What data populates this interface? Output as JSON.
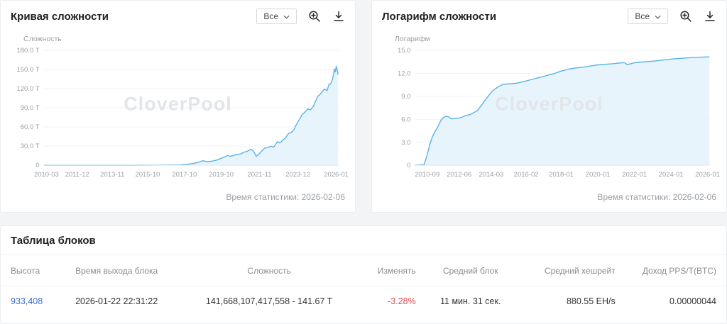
{
  "watermark": "CloverPool",
  "colors": {
    "line": "#56b4e8",
    "area": "#e7f4fc",
    "link": "#3a6fd8",
    "negative": "#e14c4c"
  },
  "panels": [
    {
      "title": "Кривая сложности",
      "range_label": "Все",
      "y_axis_title": "Сложность",
      "stats_time": "Время статистики: 2026-02-06"
    },
    {
      "title": "Логарифм сложности",
      "range_label": "Все",
      "y_axis_title": "Логарифм",
      "stats_time": "Время статистики: 2026-02-06"
    }
  ],
  "blocks_table": {
    "title": "Таблица блоков",
    "headers": [
      "Высота",
      "Время выхода блока",
      "Сложность",
      "Изменять",
      "Средний блок",
      "Средний хешрейт",
      "Доход PPS/T(BTC)"
    ],
    "rows": [
      {
        "height": "933,408",
        "time": "2026-01-22 22:31:22",
        "difficulty": "141,668,107,417,558 - 141.67 T",
        "change": "-3.28%",
        "avg_block": "11 мин. 31 сек.",
        "avg_hashrate": "880.55 EH/s",
        "income": "0.00000044"
      }
    ]
  },
  "chart_data": [
    {
      "type": "area",
      "title": "Кривая сложности",
      "ylabel": "Сложность",
      "legend": "none",
      "grid": "horizontal",
      "xrange": [
        2010.1,
        2026.15
      ],
      "ylim": [
        0,
        180
      ],
      "yticks": [
        {
          "v": 180,
          "label": "180.0 T"
        },
        {
          "v": 150,
          "label": "150.0 T"
        },
        {
          "v": 120,
          "label": "120.0 T"
        },
        {
          "v": 90,
          "label": "90.0 T"
        },
        {
          "v": 60,
          "label": "60.0 T"
        },
        {
          "v": 30,
          "label": "30.0 T"
        },
        {
          "v": 0,
          "label": "0"
        }
      ],
      "xticks": [
        {
          "v": 2010.25,
          "label": "2010-03"
        },
        {
          "v": 2011.92,
          "label": "2011-12"
        },
        {
          "v": 2013.83,
          "label": "2013-11"
        },
        {
          "v": 2015.75,
          "label": "2015-10"
        },
        {
          "v": 2017.75,
          "label": "2017-10"
        },
        {
          "v": 2019.75,
          "label": "2019-10"
        },
        {
          "v": 2021.83,
          "label": "2021-11"
        },
        {
          "v": 2023.92,
          "label": "2023-12"
        },
        {
          "v": 2026.0,
          "label": "2026-01"
        }
      ],
      "points": [
        [
          2010.1,
          0
        ],
        [
          2012.0,
          0
        ],
        [
          2013.0,
          0
        ],
        [
          2014.0,
          0.002
        ],
        [
          2015.0,
          0.05
        ],
        [
          2016.0,
          0.14
        ],
        [
          2016.5,
          0.21
        ],
        [
          2017.0,
          0.39
        ],
        [
          2017.5,
          0.71
        ],
        [
          2017.9,
          1.4
        ],
        [
          2018.2,
          2.6
        ],
        [
          2018.5,
          4.3
        ],
        [
          2018.75,
          7.0
        ],
        [
          2019.0,
          5.6
        ],
        [
          2019.2,
          6.1
        ],
        [
          2019.5,
          7.9
        ],
        [
          2019.7,
          10.2
        ],
        [
          2019.9,
          12.7
        ],
        [
          2020.1,
          15.5
        ],
        [
          2020.25,
          13.9
        ],
        [
          2020.4,
          15.1
        ],
        [
          2020.6,
          16.9
        ],
        [
          2020.8,
          17.6
        ],
        [
          2021.0,
          20.6
        ],
        [
          2021.15,
          21.4
        ],
        [
          2021.35,
          25.0
        ],
        [
          2021.45,
          23.6
        ],
        [
          2021.55,
          19.9
        ],
        [
          2021.65,
          13.7
        ],
        [
          2021.8,
          17.6
        ],
        [
          2021.95,
          22.3
        ],
        [
          2022.1,
          26.6
        ],
        [
          2022.3,
          27.9
        ],
        [
          2022.45,
          29.9
        ],
        [
          2022.6,
          28.2
        ],
        [
          2022.8,
          36.8
        ],
        [
          2022.95,
          35.4
        ],
        [
          2023.1,
          39.2
        ],
        [
          2023.25,
          43.1
        ],
        [
          2023.4,
          49.5
        ],
        [
          2023.55,
          51.2
        ],
        [
          2023.7,
          55.6
        ],
        [
          2023.85,
          64.7
        ],
        [
          2024.0,
          72.0
        ],
        [
          2024.15,
          79.5
        ],
        [
          2024.3,
          83.1
        ],
        [
          2024.45,
          88.1
        ],
        [
          2024.6,
          86.9
        ],
        [
          2024.75,
          92.0
        ],
        [
          2024.9,
          101.6
        ],
        [
          2025.0,
          108.1
        ],
        [
          2025.1,
          110.5
        ],
        [
          2025.2,
          113.8
        ],
        [
          2025.35,
          119.1
        ],
        [
          2025.5,
          116.9
        ],
        [
          2025.6,
          126.3
        ],
        [
          2025.7,
          127.6
        ],
        [
          2025.8,
          135.0
        ],
        [
          2025.85,
          142.3
        ],
        [
          2025.9,
          150.8
        ],
        [
          2025.95,
          146.0
        ],
        [
          2026.0,
          155.0
        ],
        [
          2026.05,
          150.1
        ],
        [
          2026.1,
          141.7
        ]
      ]
    },
    {
      "type": "area",
      "title": "Логарифм сложности",
      "ylabel": "Логарифм",
      "legend": "none",
      "grid": "horizontal",
      "xrange": [
        2010.0,
        2026.15
      ],
      "ylim": [
        0,
        15
      ],
      "yticks": [
        {
          "v": 15,
          "label": "15.0"
        },
        {
          "v": 12,
          "label": "12.0"
        },
        {
          "v": 9,
          "label": "9.0"
        },
        {
          "v": 6,
          "label": "6.0"
        },
        {
          "v": 3,
          "label": "3.0"
        },
        {
          "v": 0,
          "label": "0"
        }
      ],
      "xticks": [
        {
          "v": 2010.67,
          "label": "2010-09"
        },
        {
          "v": 2012.42,
          "label": "2012-06"
        },
        {
          "v": 2014.17,
          "label": "2014-03"
        },
        {
          "v": 2016.08,
          "label": "2016-02"
        },
        {
          "v": 2018.0,
          "label": "2018-01"
        },
        {
          "v": 2020.0,
          "label": "2020-01"
        },
        {
          "v": 2022.0,
          "label": "2022-01"
        },
        {
          "v": 2024.0,
          "label": "2024-01"
        },
        {
          "v": 2026.0,
          "label": "2026-01"
        }
      ],
      "points": [
        [
          2010.0,
          0
        ],
        [
          2010.5,
          0.1
        ],
        [
          2010.65,
          1.2
        ],
        [
          2010.8,
          2.6
        ],
        [
          2010.95,
          3.7
        ],
        [
          2011.1,
          4.4
        ],
        [
          2011.25,
          5.0
        ],
        [
          2011.4,
          5.8
        ],
        [
          2011.55,
          6.2
        ],
        [
          2011.7,
          6.4
        ],
        [
          2011.85,
          6.3
        ],
        [
          2012.0,
          6.05
        ],
        [
          2012.2,
          6.1
        ],
        [
          2012.4,
          6.15
        ],
        [
          2012.6,
          6.3
        ],
        [
          2012.8,
          6.5
        ],
        [
          2013.0,
          6.6
        ],
        [
          2013.2,
          6.85
        ],
        [
          2013.4,
          7.1
        ],
        [
          2013.6,
          7.7
        ],
        [
          2013.8,
          8.4
        ],
        [
          2014.0,
          9.0
        ],
        [
          2014.2,
          9.6
        ],
        [
          2014.4,
          10.0
        ],
        [
          2014.6,
          10.3
        ],
        [
          2014.8,
          10.55
        ],
        [
          2015.0,
          10.6
        ],
        [
          2015.3,
          10.65
        ],
        [
          2015.6,
          10.72
        ],
        [
          2016.0,
          10.95
        ],
        [
          2016.4,
          11.2
        ],
        [
          2016.8,
          11.45
        ],
        [
          2017.2,
          11.7
        ],
        [
          2017.6,
          11.95
        ],
        [
          2018.0,
          12.3
        ],
        [
          2018.4,
          12.55
        ],
        [
          2018.8,
          12.7
        ],
        [
          2019.2,
          12.8
        ],
        [
          2019.6,
          12.95
        ],
        [
          2020.0,
          13.1
        ],
        [
          2020.4,
          13.18
        ],
        [
          2020.8,
          13.25
        ],
        [
          2021.2,
          13.35
        ],
        [
          2021.45,
          13.4
        ],
        [
          2021.6,
          13.14
        ],
        [
          2021.8,
          13.25
        ],
        [
          2022.0,
          13.38
        ],
        [
          2022.4,
          13.47
        ],
        [
          2022.8,
          13.55
        ],
        [
          2023.2,
          13.63
        ],
        [
          2023.6,
          13.74
        ],
        [
          2024.0,
          13.86
        ],
        [
          2024.4,
          13.93
        ],
        [
          2024.8,
          14.0
        ],
        [
          2025.2,
          14.06
        ],
        [
          2025.6,
          14.1
        ],
        [
          2026.0,
          14.15
        ],
        [
          2026.1,
          14.15
        ]
      ]
    }
  ]
}
